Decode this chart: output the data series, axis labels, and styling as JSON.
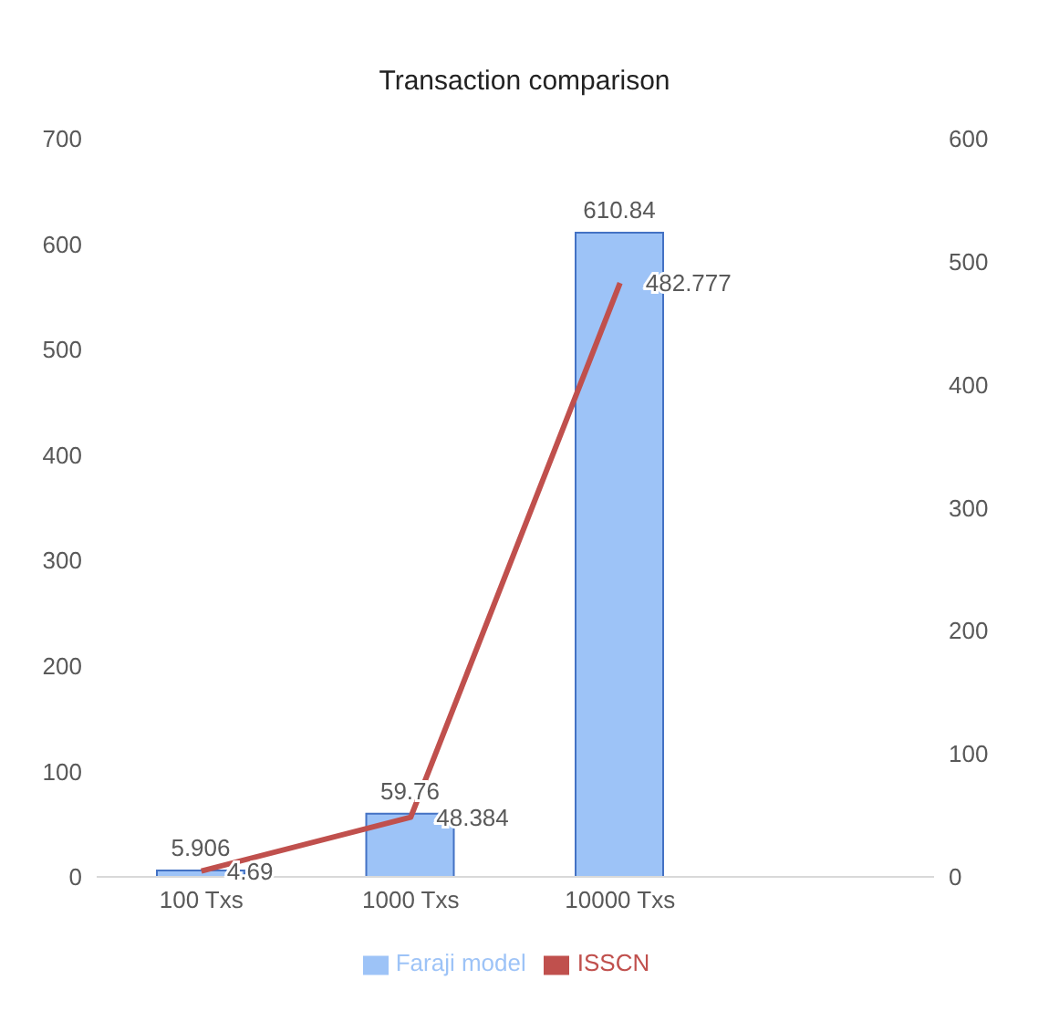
{
  "chart_data": {
    "type": "bar",
    "title": "Transaction comparison",
    "categories": [
      "100 Txs",
      "1000 Txs",
      "10000 Txs",
      null
    ],
    "series": [
      {
        "name": "Faraji model",
        "color": "#9dc3f7",
        "values": [
          5.906,
          59.76,
          610.84,
          null
        ]
      },
      {
        "name": "ISSCN",
        "type": "line",
        "axis": "y2",
        "color": "#c0504d",
        "values": [
          4.69,
          48.384,
          482.777,
          null
        ]
      }
    ],
    "ylim": [
      0,
      700
    ],
    "yticks": [
      0,
      100,
      200,
      300,
      400,
      500,
      600,
      700
    ],
    "y2lim": [
      0,
      600
    ],
    "y2ticks": [
      0,
      100,
      200,
      300,
      400,
      500,
      600
    ],
    "data_labels": true,
    "legend": "bottom",
    "grid": false,
    "marker": "none",
    "line_style": "solid"
  }
}
